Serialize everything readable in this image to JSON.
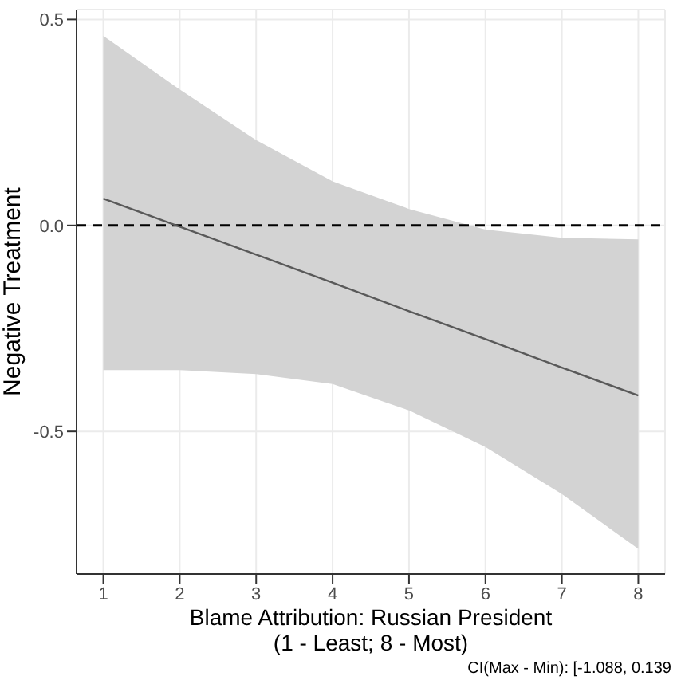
{
  "chart_data": {
    "type": "line",
    "xlabel": "Blame Attribution: Russian President\n(1 - Least; 8 - Most)",
    "ylabel": "Negative Treatment",
    "annotations": [
      "CI(Max - Min): [-1.088, 0.139"
    ],
    "x": [
      1,
      2,
      3,
      4,
      5,
      6,
      7,
      8
    ],
    "series": [
      {
        "color": "#595959",
        "values": [
          0.065,
          -0.003,
          -0.071,
          -0.139,
          -0.208,
          -0.276,
          -0.345,
          -0.413
        ],
        "lower": [
          -0.351,
          -0.351,
          -0.361,
          -0.385,
          -0.449,
          -0.538,
          -0.652,
          -0.785
        ],
        "upper": [
          0.46,
          0.33,
          0.207,
          0.107,
          0.04,
          -0.01,
          -0.03,
          -0.034
        ]
      }
    ],
    "xlim": [
      0.65,
      8.35
    ],
    "xticks": [
      1,
      2,
      3,
      4,
      5,
      6,
      7,
      8
    ],
    "ylim": [
      -0.846,
      0.524
    ],
    "yticks": [
      -0.5,
      {
        "value": 0,
        "label": "0.0"
      },
      0.5
    ],
    "ref_lines": [
      {
        "axis": "y",
        "value": 0,
        "color": "#000000",
        "line_style": "dashed"
      }
    ],
    "grid": true,
    "marker": "none",
    "line_style": "solid"
  }
}
